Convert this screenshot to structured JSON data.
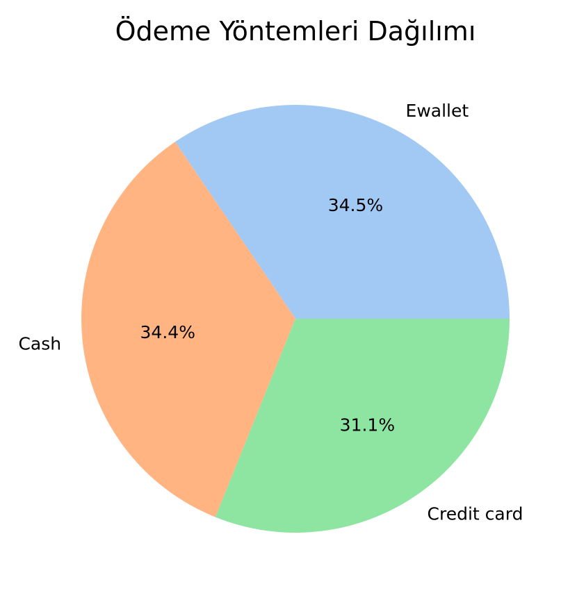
{
  "chart_data": {
    "type": "pie",
    "title": "Ödeme Yöntemleri Dağılımı",
    "categories": [
      "Ewallet",
      "Cash",
      "Credit card"
    ],
    "values": [
      34.5,
      34.4,
      31.1
    ],
    "percent_labels": [
      "34.5%",
      "34.4%",
      "31.1%"
    ],
    "colors": [
      "#a1c9f4",
      "#ffb482",
      "#8de5a1"
    ],
    "start_angle_deg": 0,
    "direction": "counterclockwise"
  }
}
